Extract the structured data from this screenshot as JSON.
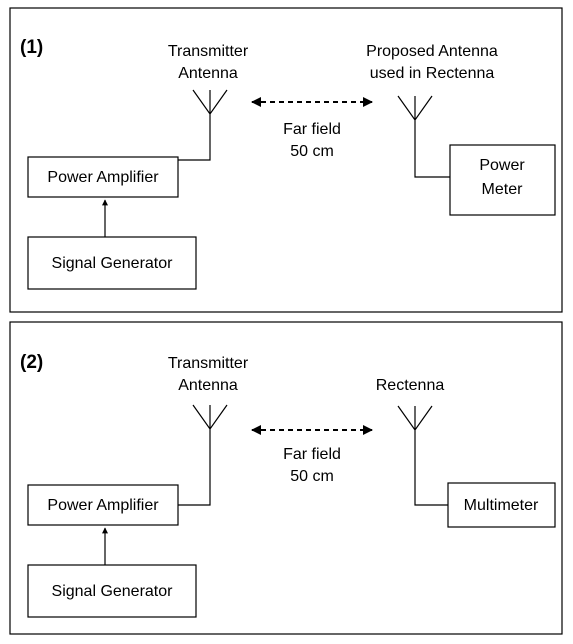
{
  "panels": [
    {
      "label": "(1)",
      "transmitter": [
        "Transmitter",
        "Antenna"
      ],
      "link": [
        "Far field",
        "50 cm"
      ],
      "receiver": [
        "Proposed Antenna",
        "used in Rectenna"
      ],
      "amplifier": "Power Amplifier",
      "generator": "Signal Generator",
      "meter": [
        "Power",
        "Meter"
      ]
    },
    {
      "label": "(2)",
      "transmitter": [
        "Transmitter",
        "Antenna"
      ],
      "link": [
        "Far field",
        "50 cm"
      ],
      "receiver": [
        "Rectenna"
      ],
      "amplifier": "Power Amplifier",
      "generator": "Signal Generator",
      "meter": [
        "Multimeter"
      ]
    }
  ]
}
